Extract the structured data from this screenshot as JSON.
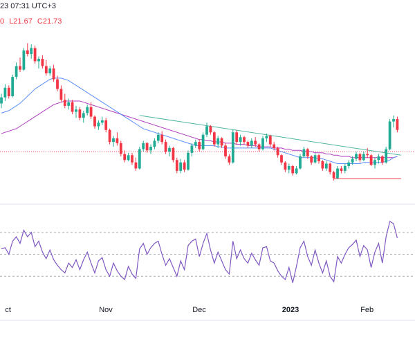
{
  "header": {
    "title_fragment": "23 07:31 UTC+3",
    "ohlc": {
      "open": "0",
      "low": "L21.67",
      "close": "C21.73"
    }
  },
  "colors": {
    "up": "#22ab94",
    "down": "#f23645",
    "ma_fast": "#5b8ff9",
    "ma_slow": "#b03fc0",
    "trendline": "#4fb59e",
    "support": "#f23645",
    "rsi": "#7e57c2",
    "grid": "#9aa0a6"
  },
  "chart_data": {
    "type": "candlestick",
    "price_panel": {
      "ylim": [
        19.5,
        33
      ],
      "candles": [
        [
          27.0,
          27.8,
          26.6,
          27.5
        ],
        [
          27.5,
          28.6,
          27.2,
          28.3
        ],
        [
          28.3,
          28.5,
          27.4,
          27.6
        ],
        [
          27.6,
          29.4,
          27.5,
          29.2
        ],
        [
          29.2,
          30.4,
          29.0,
          30.1
        ],
        [
          30.1,
          30.8,
          29.6,
          29.8
        ],
        [
          29.8,
          31.6,
          29.7,
          31.4
        ],
        [
          31.4,
          32.0,
          30.9,
          31.1
        ],
        [
          31.1,
          31.9,
          30.7,
          31.6
        ],
        [
          31.6,
          31.8,
          30.3,
          30.5
        ],
        [
          30.5,
          30.9,
          29.9,
          30.7
        ],
        [
          30.7,
          31.0,
          29.9,
          30.1
        ],
        [
          30.1,
          30.6,
          29.3,
          29.5
        ],
        [
          29.5,
          30.1,
          29.3,
          29.9
        ],
        [
          29.9,
          30.2,
          28.8,
          29.0
        ],
        [
          29.0,
          29.3,
          28.0,
          28.2
        ],
        [
          28.2,
          28.5,
          27.1,
          27.3
        ],
        [
          27.3,
          27.8,
          26.6,
          26.8
        ],
        [
          26.8,
          27.4,
          26.5,
          27.1
        ],
        [
          27.1,
          27.3,
          26.1,
          26.3
        ],
        [
          26.3,
          26.8,
          25.8,
          26.5
        ],
        [
          26.5,
          26.7,
          25.6,
          25.8
        ],
        [
          25.8,
          26.4,
          25.4,
          26.2
        ],
        [
          26.2,
          26.9,
          26.0,
          26.7
        ],
        [
          26.7,
          27.1,
          25.7,
          25.9
        ],
        [
          25.9,
          26.0,
          24.9,
          25.1
        ],
        [
          25.1,
          25.6,
          24.8,
          25.4
        ],
        [
          25.4,
          25.9,
          25.2,
          25.6
        ],
        [
          25.6,
          25.8,
          24.6,
          24.8
        ],
        [
          24.8,
          24.9,
          23.6,
          23.8
        ],
        [
          23.8,
          24.3,
          23.4,
          24.1
        ],
        [
          24.1,
          24.6,
          23.5,
          23.7
        ],
        [
          23.7,
          23.9,
          22.6,
          22.8
        ],
        [
          22.8,
          23.1,
          22.1,
          22.3
        ],
        [
          22.3,
          22.9,
          22.2,
          22.7
        ],
        [
          22.7,
          22.9,
          21.9,
          22.1
        ],
        [
          22.1,
          22.5,
          21.4,
          21.6
        ],
        [
          21.6,
          23.4,
          21.5,
          23.2
        ],
        [
          23.2,
          23.9,
          23.0,
          23.7
        ],
        [
          23.7,
          23.8,
          22.9,
          23.1
        ],
        [
          23.1,
          23.6,
          22.8,
          23.4
        ],
        [
          23.4,
          24.1,
          23.2,
          23.9
        ],
        [
          23.9,
          24.6,
          23.7,
          24.4
        ],
        [
          24.4,
          24.7,
          23.6,
          23.8
        ],
        [
          23.8,
          24.0,
          22.8,
          23.0
        ],
        [
          23.0,
          23.5,
          22.6,
          23.3
        ],
        [
          23.3,
          23.4,
          22.1,
          22.3
        ],
        [
          22.3,
          22.5,
          21.2,
          21.4
        ],
        [
          21.4,
          22.4,
          21.2,
          22.1
        ],
        [
          22.1,
          22.3,
          21.3,
          21.5
        ],
        [
          21.5,
          23.1,
          21.4,
          22.9
        ],
        [
          22.9,
          23.7,
          22.6,
          23.5
        ],
        [
          23.5,
          24.0,
          23.3,
          23.8
        ],
        [
          23.8,
          24.0,
          23.0,
          23.2
        ],
        [
          23.2,
          24.6,
          23.1,
          24.4
        ],
        [
          24.4,
          25.4,
          24.2,
          25.1
        ],
        [
          25.1,
          25.2,
          24.4,
          24.6
        ],
        [
          24.6,
          24.7,
          23.4,
          23.6
        ],
        [
          23.6,
          24.3,
          23.3,
          24.1
        ],
        [
          24.1,
          24.2,
          23.3,
          23.5
        ],
        [
          23.5,
          23.7,
          22.4,
          22.6
        ],
        [
          22.6,
          22.8,
          21.9,
          22.1
        ],
        [
          22.1,
          24.8,
          22.0,
          24.6
        ],
        [
          24.6,
          24.8,
          23.6,
          23.8
        ],
        [
          23.8,
          24.4,
          23.5,
          24.2
        ],
        [
          24.2,
          24.3,
          23.6,
          23.8
        ],
        [
          23.8,
          23.9,
          23.3,
          23.5
        ],
        [
          23.5,
          24.1,
          23.3,
          23.9
        ],
        [
          23.9,
          24.2,
          23.4,
          23.6
        ],
        [
          23.6,
          23.7,
          23.0,
          23.2
        ],
        [
          23.2,
          24.3,
          23.1,
          24.1
        ],
        [
          24.1,
          24.5,
          23.8,
          24.3
        ],
        [
          24.3,
          24.4,
          23.4,
          23.6
        ],
        [
          23.6,
          23.8,
          23.1,
          23.3
        ],
        [
          23.3,
          23.4,
          22.5,
          22.7
        ],
        [
          22.7,
          22.8,
          21.9,
          22.1
        ],
        [
          22.1,
          22.2,
          21.3,
          21.5
        ],
        [
          21.5,
          22.0,
          21.2,
          21.8
        ],
        [
          21.8,
          21.9,
          21.0,
          21.2
        ],
        [
          21.2,
          21.8,
          21.1,
          21.6
        ],
        [
          21.6,
          22.8,
          21.5,
          22.6
        ],
        [
          22.6,
          23.4,
          22.5,
          23.2
        ],
        [
          23.2,
          23.3,
          22.4,
          22.6
        ],
        [
          22.6,
          22.7,
          21.9,
          22.1
        ],
        [
          22.1,
          22.9,
          22.0,
          22.7
        ],
        [
          22.7,
          22.8,
          22.0,
          22.2
        ],
        [
          22.2,
          22.3,
          21.4,
          21.6
        ],
        [
          21.6,
          22.2,
          21.4,
          22.0
        ],
        [
          22.0,
          22.1,
          21.1,
          21.3
        ],
        [
          21.3,
          21.4,
          20.6,
          20.8
        ],
        [
          20.8,
          21.8,
          20.7,
          21.6
        ],
        [
          21.6,
          21.8,
          21.2,
          21.4
        ],
        [
          21.4,
          22.0,
          21.2,
          21.8
        ],
        [
          21.8,
          22.3,
          21.6,
          22.1
        ],
        [
          22.1,
          22.6,
          21.9,
          22.4
        ],
        [
          22.4,
          23.0,
          22.2,
          22.8
        ],
        [
          22.8,
          22.9,
          22.1,
          22.3
        ],
        [
          22.3,
          23.0,
          22.2,
          22.8
        ],
        [
          22.8,
          23.3,
          22.5,
          22.7
        ],
        [
          22.7,
          22.8,
          21.8,
          21.9
        ],
        [
          21.9,
          22.5,
          21.6,
          22.3
        ],
        [
          22.3,
          22.8,
          22.0,
          22.6
        ],
        [
          22.6,
          22.7,
          21.9,
          22.1
        ],
        [
          22.1,
          23.4,
          22.0,
          23.2
        ],
        [
          23.2,
          25.7,
          23.1,
          25.5
        ],
        [
          25.5,
          26.0,
          25.0,
          25.7
        ],
        [
          25.7,
          25.9,
          24.6,
          24.8
        ]
      ],
      "ma_fast": [
        26.2,
        26.3,
        26.4,
        26.6,
        26.8,
        27.0,
        27.3,
        27.6,
        27.9,
        28.2,
        28.4,
        28.6,
        28.8,
        29.0,
        29.1,
        29.1,
        29.1,
        29.0,
        28.9,
        28.7,
        28.5,
        28.3,
        28.1,
        27.9,
        27.7,
        27.5,
        27.3,
        27.1,
        26.9,
        26.7,
        26.5,
        26.3,
        26.1,
        25.9,
        25.7,
        25.5,
        25.3,
        25.1,
        24.9,
        24.8,
        24.7,
        24.6,
        24.5,
        24.4,
        24.3,
        24.2,
        24.1,
        24.0,
        23.9,
        23.8,
        23.7,
        23.6,
        23.5,
        23.5,
        23.5,
        23.5,
        23.5,
        23.5,
        23.4,
        23.4,
        23.3,
        23.3,
        23.3,
        23.3,
        23.3,
        23.3,
        23.3,
        23.3,
        23.3,
        23.3,
        23.3,
        23.3,
        23.3,
        23.2,
        23.1,
        23.0,
        22.9,
        22.8,
        22.7,
        22.6,
        22.5,
        22.5,
        22.5,
        22.5,
        22.5,
        22.4,
        22.4,
        22.3,
        22.2,
        22.1,
        22.0,
        22.0,
        22.0,
        22.0,
        22.0,
        22.0,
        22.0,
        22.1,
        22.1,
        22.1,
        22.1,
        22.1,
        22.1,
        22.2,
        22.3,
        22.5,
        22.6
      ],
      "ma_slow": [
        24.5,
        24.6,
        24.7,
        24.8,
        24.9,
        25.1,
        25.3,
        25.5,
        25.7,
        25.9,
        26.1,
        26.3,
        26.5,
        26.7,
        26.9,
        27.0,
        27.1,
        27.2,
        27.2,
        27.2,
        27.2,
        27.2,
        27.1,
        27.0,
        26.9,
        26.8,
        26.7,
        26.6,
        26.5,
        26.4,
        26.3,
        26.2,
        26.1,
        26.0,
        25.9,
        25.8,
        25.7,
        25.6,
        25.5,
        25.4,
        25.3,
        25.2,
        25.1,
        25.0,
        24.9,
        24.8,
        24.7,
        24.6,
        24.5,
        24.4,
        24.3,
        24.2,
        24.1,
        24.0,
        24.0,
        23.9,
        23.9,
        23.8,
        23.8,
        23.8,
        23.7,
        23.7,
        23.7,
        23.6,
        23.6,
        23.6,
        23.5,
        23.5,
        23.5,
        23.4,
        23.4,
        23.4,
        23.4,
        23.3,
        23.3,
        23.3,
        23.2,
        23.2,
        23.1,
        23.1,
        23.1,
        23.0,
        23.0,
        23.0,
        22.9,
        22.9,
        22.9,
        22.8,
        22.8,
        22.7,
        22.7,
        22.6,
        22.6,
        22.6,
        22.5,
        22.5,
        22.5,
        22.5,
        22.5,
        22.5,
        22.5,
        22.5,
        22.5,
        22.5,
        22.5,
        22.5,
        22.6
      ],
      "trendline": {
        "from": [
          37,
          26.0
        ],
        "to": [
          107,
          22.7
        ]
      },
      "support": {
        "from": [
          89,
          20.75
        ],
        "to": [
          107,
          20.75
        ]
      },
      "dotted_level": 23.0
    },
    "rsi_panel": {
      "ylim": [
        20,
        80
      ],
      "levels": [
        70,
        50,
        30
      ],
      "values": [
        55,
        56,
        50,
        62,
        66,
        60,
        72,
        66,
        70,
        57,
        62,
        52,
        46,
        54,
        45,
        40,
        36,
        33,
        42,
        38,
        45,
        36,
        45,
        52,
        42,
        33,
        44,
        47,
        36,
        30,
        42,
        35,
        30,
        27,
        39,
        32,
        28,
        55,
        60,
        50,
        56,
        60,
        62,
        50,
        40,
        46,
        38,
        30,
        44,
        36,
        58,
        62,
        64,
        48,
        60,
        69,
        54,
        42,
        52,
        44,
        36,
        32,
        62,
        46,
        54,
        46,
        42,
        51,
        45,
        40,
        56,
        57,
        44,
        42,
        35,
        30,
        27,
        38,
        24,
        39,
        56,
        62,
        48,
        40,
        54,
        42,
        33,
        44,
        30,
        25,
        48,
        42,
        50,
        56,
        59,
        63,
        48,
        58,
        54,
        38,
        52,
        60,
        42,
        66,
        80,
        78,
        65
      ],
      "xlabels": [
        {
          "index": 1,
          "label": "ct"
        },
        {
          "index": 28,
          "label": "Nov"
        },
        {
          "index": 53,
          "label": "Dec"
        },
        {
          "index": 77,
          "label": "2023",
          "bold": true
        },
        {
          "index": 98,
          "label": "Feb"
        }
      ]
    }
  }
}
